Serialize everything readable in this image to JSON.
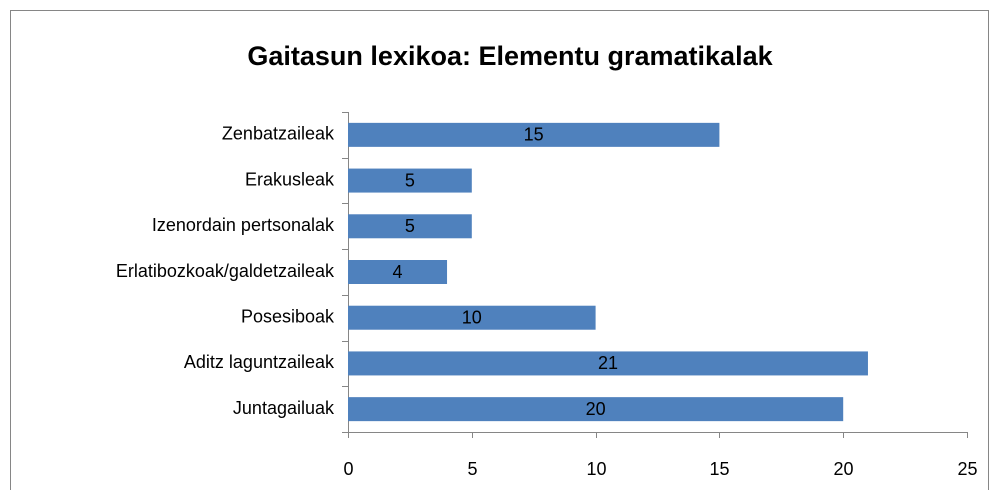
{
  "chart_data": {
    "type": "bar",
    "orientation": "horizontal",
    "title": "Gaitasun lexikoa: Elementu gramatikalak",
    "categories": [
      "Zenbatzaileak",
      "Erakusleak",
      "Izenordain pertsonalak",
      "Erlatibozkoak/galdetzaileak",
      "Posesiboak",
      "Aditz laguntzaileak",
      "Juntagailuak"
    ],
    "values": [
      15,
      5,
      5,
      4,
      10,
      21,
      20
    ],
    "color": "#4f81bd",
    "xlim": [
      0,
      25
    ],
    "xticks": [
      0,
      5,
      10,
      15,
      20,
      25
    ],
    "grid": false
  }
}
